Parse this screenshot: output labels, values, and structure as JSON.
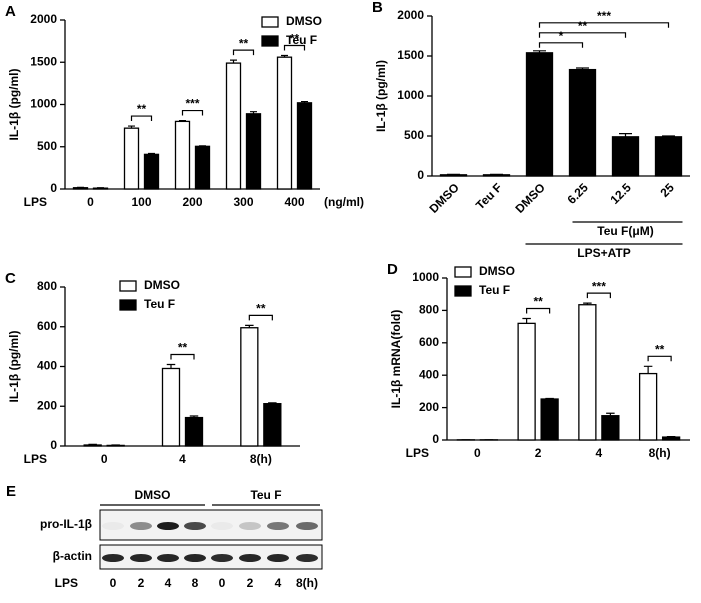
{
  "chart_data": [
    {
      "type": "bar",
      "panel": "A",
      "y_label": "IL-1β (pg/ml)",
      "x_label": "LPS",
      "x_unit": "(ng/ml)",
      "categories": [
        "0",
        "100",
        "200",
        "300",
        "400"
      ],
      "ylim": [
        0,
        2000
      ],
      "yticks": [
        0,
        500,
        1000,
        1500,
        2000
      ],
      "series": [
        {
          "name": "DMSO",
          "color": "#ffffff",
          "values": [
            15,
            720,
            800,
            1490,
            1560
          ],
          "errors": [
            5,
            25,
            10,
            35,
            20
          ]
        },
        {
          "name": "Teu F",
          "color": "#000000",
          "values": [
            10,
            410,
            505,
            890,
            1020
          ],
          "errors": [
            5,
            10,
            5,
            25,
            15
          ]
        }
      ],
      "significance": [
        null,
        "**",
        "***",
        "**",
        "**"
      ]
    },
    {
      "type": "bar",
      "panel": "B",
      "y_label": "IL-1β (pg/ml)",
      "categories": [
        "DMSO",
        "Teu F",
        "DMSO",
        "6.25",
        "12.5",
        "25"
      ],
      "values": [
        15,
        15,
        1540,
        1330,
        490,
        490
      ],
      "errors": [
        5,
        5,
        25,
        20,
        40,
        10
      ],
      "color": "#000000",
      "ylim": [
        0,
        2000
      ],
      "yticks": [
        0,
        500,
        1000,
        1500,
        2000
      ],
      "significance": [
        "*",
        "**",
        "***"
      ],
      "groups": [
        "Teu F(μM)",
        "LPS+ATP"
      ]
    },
    {
      "type": "bar",
      "panel": "C",
      "y_label": "IL-1β (pg/ml)",
      "x_label": "LPS",
      "categories": [
        "0",
        "4",
        "8(h)"
      ],
      "ylim": [
        0,
        800
      ],
      "yticks": [
        0,
        200,
        400,
        600,
        800
      ],
      "series": [
        {
          "name": "DMSO",
          "color": "#ffffff",
          "values": [
            5,
            390,
            595
          ],
          "errors": [
            3,
            20,
            12
          ]
        },
        {
          "name": "Teu F",
          "color": "#000000",
          "values": [
            3,
            143,
            213
          ],
          "errors": [
            2,
            8,
            4
          ]
        }
      ],
      "significance": [
        null,
        "**",
        "**"
      ]
    },
    {
      "type": "bar",
      "panel": "D",
      "y_label": "IL-1β mRNA(fold)",
      "x_label": "LPS",
      "categories": [
        "0",
        "2",
        "4",
        "8(h)"
      ],
      "ylim": [
        0,
        1000
      ],
      "yticks": [
        0,
        200,
        400,
        600,
        800,
        1000
      ],
      "series": [
        {
          "name": "DMSO",
          "color": "#ffffff",
          "values": [
            1,
            720,
            835,
            410
          ],
          "errors": [
            0,
            30,
            10,
            45
          ]
        },
        {
          "name": "Teu F",
          "color": "#000000",
          "values": [
            1,
            253,
            150,
            18
          ],
          "errors": [
            0,
            3,
            15,
            3
          ]
        }
      ],
      "significance": [
        null,
        "**",
        "***",
        "**"
      ]
    }
  ],
  "blot": {
    "panel": "E",
    "groups": [
      "DMSO",
      "Teu F"
    ],
    "rows": [
      "pro-IL-1β",
      "β-actin"
    ],
    "x_label": "LPS",
    "lanes": [
      "0",
      "2",
      "4",
      "8",
      "0",
      "2",
      "4",
      "8(h)"
    ]
  }
}
